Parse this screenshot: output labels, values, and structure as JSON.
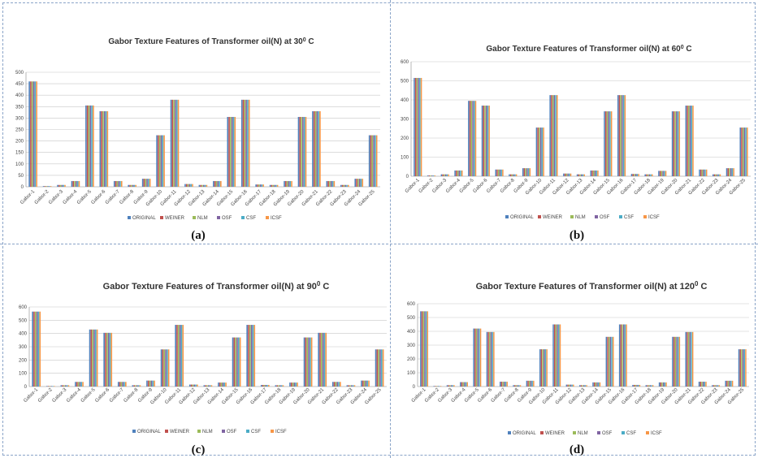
{
  "captions": [
    "(a)",
    "(b)",
    "(c)",
    "(d)"
  ],
  "chart_data": [
    {
      "type": "bar",
      "title": "Gabor Texture Features of Transformer oil(N) at 30",
      "title_superscript": "0",
      "title_suffix": " C",
      "ylim": [
        0,
        500
      ],
      "yticks": [
        0,
        50,
        100,
        150,
        200,
        250,
        300,
        350,
        400,
        450,
        500
      ],
      "grid": true,
      "legend_position": "bottom",
      "categories": [
        "Gabor-1",
        "Gabor-2",
        "Gabor-3",
        "Gabor-4",
        "Gabor-5",
        "Gabor-6",
        "Gabor-7",
        "Gabor-8",
        "Gabor-9",
        "Gabor-10",
        "Gabor-11",
        "Gabor-12",
        "Gabor-13",
        "Gabor-14",
        "Gabor-15",
        "Gabor-16",
        "Gabor-17",
        "Gabor-18",
        "Gabor-19",
        "Gabor-20",
        "Gabor-21",
        "Gabor-22",
        "Gabor-23",
        "Gabor-24",
        "Gabor-25"
      ],
      "series": [
        {
          "name": "ORIGINAL",
          "color": "#4f81bd",
          "values": [
            460,
            3,
            8,
            25,
            355,
            330,
            25,
            8,
            35,
            225,
            380,
            12,
            8,
            25,
            305,
            380,
            10,
            8,
            25,
            305,
            330,
            25,
            8,
            35,
            225
          ]
        },
        {
          "name": "WEINER",
          "color": "#c0504d",
          "values": [
            460,
            3,
            8,
            25,
            355,
            330,
            25,
            8,
            35,
            225,
            380,
            12,
            8,
            25,
            305,
            380,
            10,
            8,
            25,
            305,
            330,
            25,
            8,
            35,
            225
          ]
        },
        {
          "name": "NLM",
          "color": "#9bbb59",
          "values": [
            460,
            3,
            8,
            25,
            355,
            330,
            25,
            8,
            35,
            225,
            380,
            12,
            8,
            25,
            305,
            380,
            10,
            8,
            25,
            305,
            330,
            25,
            8,
            35,
            225
          ]
        },
        {
          "name": "OSF",
          "color": "#8064a2",
          "values": [
            460,
            3,
            8,
            25,
            355,
            330,
            25,
            8,
            35,
            225,
            380,
            12,
            8,
            25,
            305,
            380,
            10,
            8,
            25,
            305,
            330,
            25,
            8,
            35,
            225
          ]
        },
        {
          "name": "CSF",
          "color": "#4bacc6",
          "values": [
            460,
            3,
            8,
            25,
            355,
            330,
            25,
            8,
            35,
            225,
            380,
            12,
            8,
            25,
            305,
            380,
            10,
            8,
            25,
            305,
            330,
            25,
            8,
            35,
            225
          ]
        },
        {
          "name": "ICSF",
          "color": "#f79646",
          "values": [
            460,
            3,
            8,
            25,
            355,
            330,
            25,
            8,
            35,
            225,
            380,
            12,
            8,
            25,
            305,
            380,
            10,
            8,
            25,
            305,
            330,
            25,
            8,
            35,
            225
          ]
        }
      ]
    },
    {
      "type": "bar",
      "title": "Gabor Texture Features of Transformer oil(N) at 60",
      "title_superscript": "0",
      "title_suffix": " C",
      "ylim": [
        0,
        600
      ],
      "yticks": [
        0,
        100,
        200,
        300,
        400,
        500,
        600
      ],
      "grid": true,
      "legend_position": "bottom",
      "categories": [
        "Gabor-1",
        "Gabor-2",
        "Gabor-3",
        "Gabor-4",
        "Gabor-5",
        "Gabor-6",
        "Gabor-7",
        "Gabor-8",
        "Gabor-9",
        "Gabor-10",
        "Gabor-11",
        "Gabor-12",
        "Gabor-13",
        "Gabor-14",
        "Gabor-15",
        "Gabor-16",
        "Gabor-17",
        "Gabor-18",
        "Gabor-19",
        "Gabor-20",
        "Gabor-21",
        "Gabor-22",
        "Gabor-23",
        "Gabor-24",
        "Gabor-25"
      ],
      "series": [
        {
          "name": "ORIGINAL",
          "color": "#4f81bd",
          "values": [
            515,
            4,
            10,
            30,
            395,
            370,
            35,
            10,
            42,
            255,
            425,
            14,
            10,
            30,
            340,
            425,
            12,
            10,
            28,
            340,
            370,
            35,
            10,
            42,
            255
          ]
        },
        {
          "name": "WEINER",
          "color": "#c0504d",
          "values": [
            515,
            4,
            10,
            30,
            395,
            370,
            35,
            10,
            42,
            255,
            425,
            14,
            10,
            30,
            340,
            425,
            12,
            10,
            28,
            340,
            370,
            35,
            10,
            42,
            255
          ]
        },
        {
          "name": "NLM",
          "color": "#9bbb59",
          "values": [
            515,
            4,
            10,
            30,
            395,
            370,
            35,
            10,
            42,
            255,
            425,
            14,
            10,
            30,
            340,
            425,
            12,
            10,
            28,
            340,
            370,
            35,
            10,
            42,
            255
          ]
        },
        {
          "name": "OSF",
          "color": "#8064a2",
          "values": [
            515,
            4,
            10,
            30,
            395,
            370,
            35,
            10,
            42,
            255,
            425,
            14,
            10,
            30,
            340,
            425,
            12,
            10,
            28,
            340,
            370,
            35,
            10,
            42,
            255
          ]
        },
        {
          "name": "CSF",
          "color": "#4bacc6",
          "values": [
            515,
            4,
            10,
            30,
            395,
            370,
            35,
            10,
            42,
            255,
            425,
            14,
            10,
            30,
            340,
            425,
            12,
            10,
            28,
            340,
            370,
            35,
            10,
            42,
            255
          ]
        },
        {
          "name": "ICSF",
          "color": "#f79646",
          "values": [
            515,
            4,
            10,
            30,
            395,
            370,
            35,
            10,
            42,
            255,
            425,
            14,
            10,
            30,
            340,
            425,
            12,
            10,
            28,
            340,
            370,
            35,
            10,
            42,
            255
          ]
        }
      ]
    },
    {
      "type": "bar",
      "title": "Gabor Texture Features of Transformer oil(N) at 90",
      "title_superscript": "0",
      "title_suffix": " C",
      "ylim": [
        0,
        600
      ],
      "yticks": [
        0,
        100,
        200,
        300,
        400,
        500,
        600
      ],
      "grid": true,
      "legend_position": "bottom",
      "categories": [
        "Gabor-1",
        "Gabor-2",
        "Gabor-3",
        "Gabor-4",
        "Gabor-5",
        "Gabor-6",
        "Gabor-7",
        "Gabor-8",
        "Gabor-9",
        "Gabor-10",
        "Gabor-11",
        "Gabor-12",
        "Gabor-13",
        "Gabor-14",
        "Gabor-15",
        "Gabor-16",
        "Gabor-17",
        "Gabor-18",
        "Gabor-19",
        "Gabor-20",
        "Gabor-21",
        "Gabor-22",
        "Gabor-23",
        "Gabor-24",
        "Gabor-25"
      ],
      "series": [
        {
          "name": "ORIGINAL",
          "color": "#4f81bd",
          "values": [
            565,
            4,
            10,
            35,
            430,
            405,
            35,
            10,
            45,
            280,
            465,
            15,
            10,
            30,
            370,
            465,
            12,
            10,
            30,
            370,
            405,
            35,
            10,
            45,
            280
          ]
        },
        {
          "name": "WEINER",
          "color": "#c0504d",
          "values": [
            565,
            4,
            10,
            35,
            430,
            405,
            35,
            10,
            45,
            280,
            465,
            15,
            10,
            30,
            370,
            465,
            12,
            10,
            30,
            370,
            405,
            35,
            10,
            45,
            280
          ]
        },
        {
          "name": "NLM",
          "color": "#9bbb59",
          "values": [
            565,
            4,
            10,
            35,
            430,
            405,
            35,
            10,
            45,
            280,
            465,
            15,
            10,
            30,
            370,
            465,
            12,
            10,
            30,
            370,
            405,
            35,
            10,
            45,
            280
          ]
        },
        {
          "name": "OSF",
          "color": "#8064a2",
          "values": [
            565,
            4,
            10,
            35,
            430,
            405,
            35,
            10,
            45,
            280,
            465,
            15,
            10,
            30,
            370,
            465,
            12,
            10,
            30,
            370,
            405,
            35,
            10,
            45,
            280
          ]
        },
        {
          "name": "CSF",
          "color": "#4bacc6",
          "values": [
            565,
            4,
            10,
            35,
            430,
            405,
            35,
            10,
            45,
            280,
            465,
            15,
            10,
            30,
            370,
            465,
            12,
            10,
            30,
            370,
            405,
            35,
            10,
            45,
            280
          ]
        },
        {
          "name": "ICSF",
          "color": "#f79646",
          "values": [
            565,
            4,
            10,
            35,
            430,
            405,
            35,
            10,
            45,
            280,
            465,
            15,
            10,
            30,
            370,
            465,
            12,
            10,
            30,
            370,
            405,
            35,
            10,
            45,
            280
          ]
        }
      ]
    },
    {
      "type": "bar",
      "title": "Gabor Texture Features of Transformer oil(N) at 120",
      "title_superscript": "0",
      "title_suffix": " C",
      "ylim": [
        0,
        600
      ],
      "yticks": [
        0,
        100,
        200,
        300,
        400,
        500,
        600
      ],
      "grid": true,
      "legend_position": "bottom",
      "categories": [
        "Gabor-1",
        "Gabor-2",
        "Gabor-3",
        "Gabor-4",
        "Gabor-5",
        "Gabor-6",
        "Gabor-7",
        "Gabor-8",
        "Gabor-9",
        "Gabor-10",
        "Gabor-11",
        "Gabor-12",
        "Gabor-13",
        "Gabor-14",
        "Gabor-15",
        "Gabor-16",
        "Gabor-17",
        "Gabor-18",
        "Gabor-19",
        "Gabor-20",
        "Gabor-21",
        "Gabor-22",
        "Gabor-23",
        "Gabor-24",
        "Gabor-25"
      ],
      "series": [
        {
          "name": "ORIGINAL",
          "color": "#4f81bd",
          "values": [
            545,
            4,
            10,
            32,
            420,
            395,
            35,
            10,
            42,
            270,
            450,
            14,
            10,
            30,
            360,
            450,
            12,
            10,
            30,
            360,
            395,
            35,
            10,
            42,
            270
          ]
        },
        {
          "name": "WEINER",
          "color": "#c0504d",
          "values": [
            545,
            4,
            10,
            32,
            420,
            395,
            35,
            10,
            42,
            270,
            450,
            14,
            10,
            30,
            360,
            450,
            12,
            10,
            30,
            360,
            395,
            35,
            10,
            42,
            270
          ]
        },
        {
          "name": "NLM",
          "color": "#9bbb59",
          "values": [
            545,
            4,
            10,
            32,
            420,
            395,
            35,
            10,
            42,
            270,
            450,
            14,
            10,
            30,
            360,
            450,
            12,
            10,
            30,
            360,
            395,
            35,
            10,
            42,
            270
          ]
        },
        {
          "name": "OSF",
          "color": "#8064a2",
          "values": [
            545,
            4,
            10,
            32,
            420,
            395,
            35,
            10,
            42,
            270,
            450,
            14,
            10,
            30,
            360,
            450,
            12,
            10,
            30,
            360,
            395,
            35,
            10,
            42,
            270
          ]
        },
        {
          "name": "CSF",
          "color": "#4bacc6",
          "values": [
            545,
            4,
            10,
            32,
            420,
            395,
            35,
            10,
            42,
            270,
            450,
            14,
            10,
            30,
            360,
            450,
            12,
            10,
            30,
            360,
            395,
            35,
            10,
            42,
            270
          ]
        },
        {
          "name": "ICSF",
          "color": "#f79646",
          "values": [
            545,
            4,
            10,
            32,
            420,
            395,
            35,
            10,
            42,
            270,
            450,
            14,
            10,
            30,
            360,
            450,
            12,
            10,
            30,
            360,
            395,
            35,
            10,
            42,
            270
          ]
        }
      ]
    }
  ]
}
